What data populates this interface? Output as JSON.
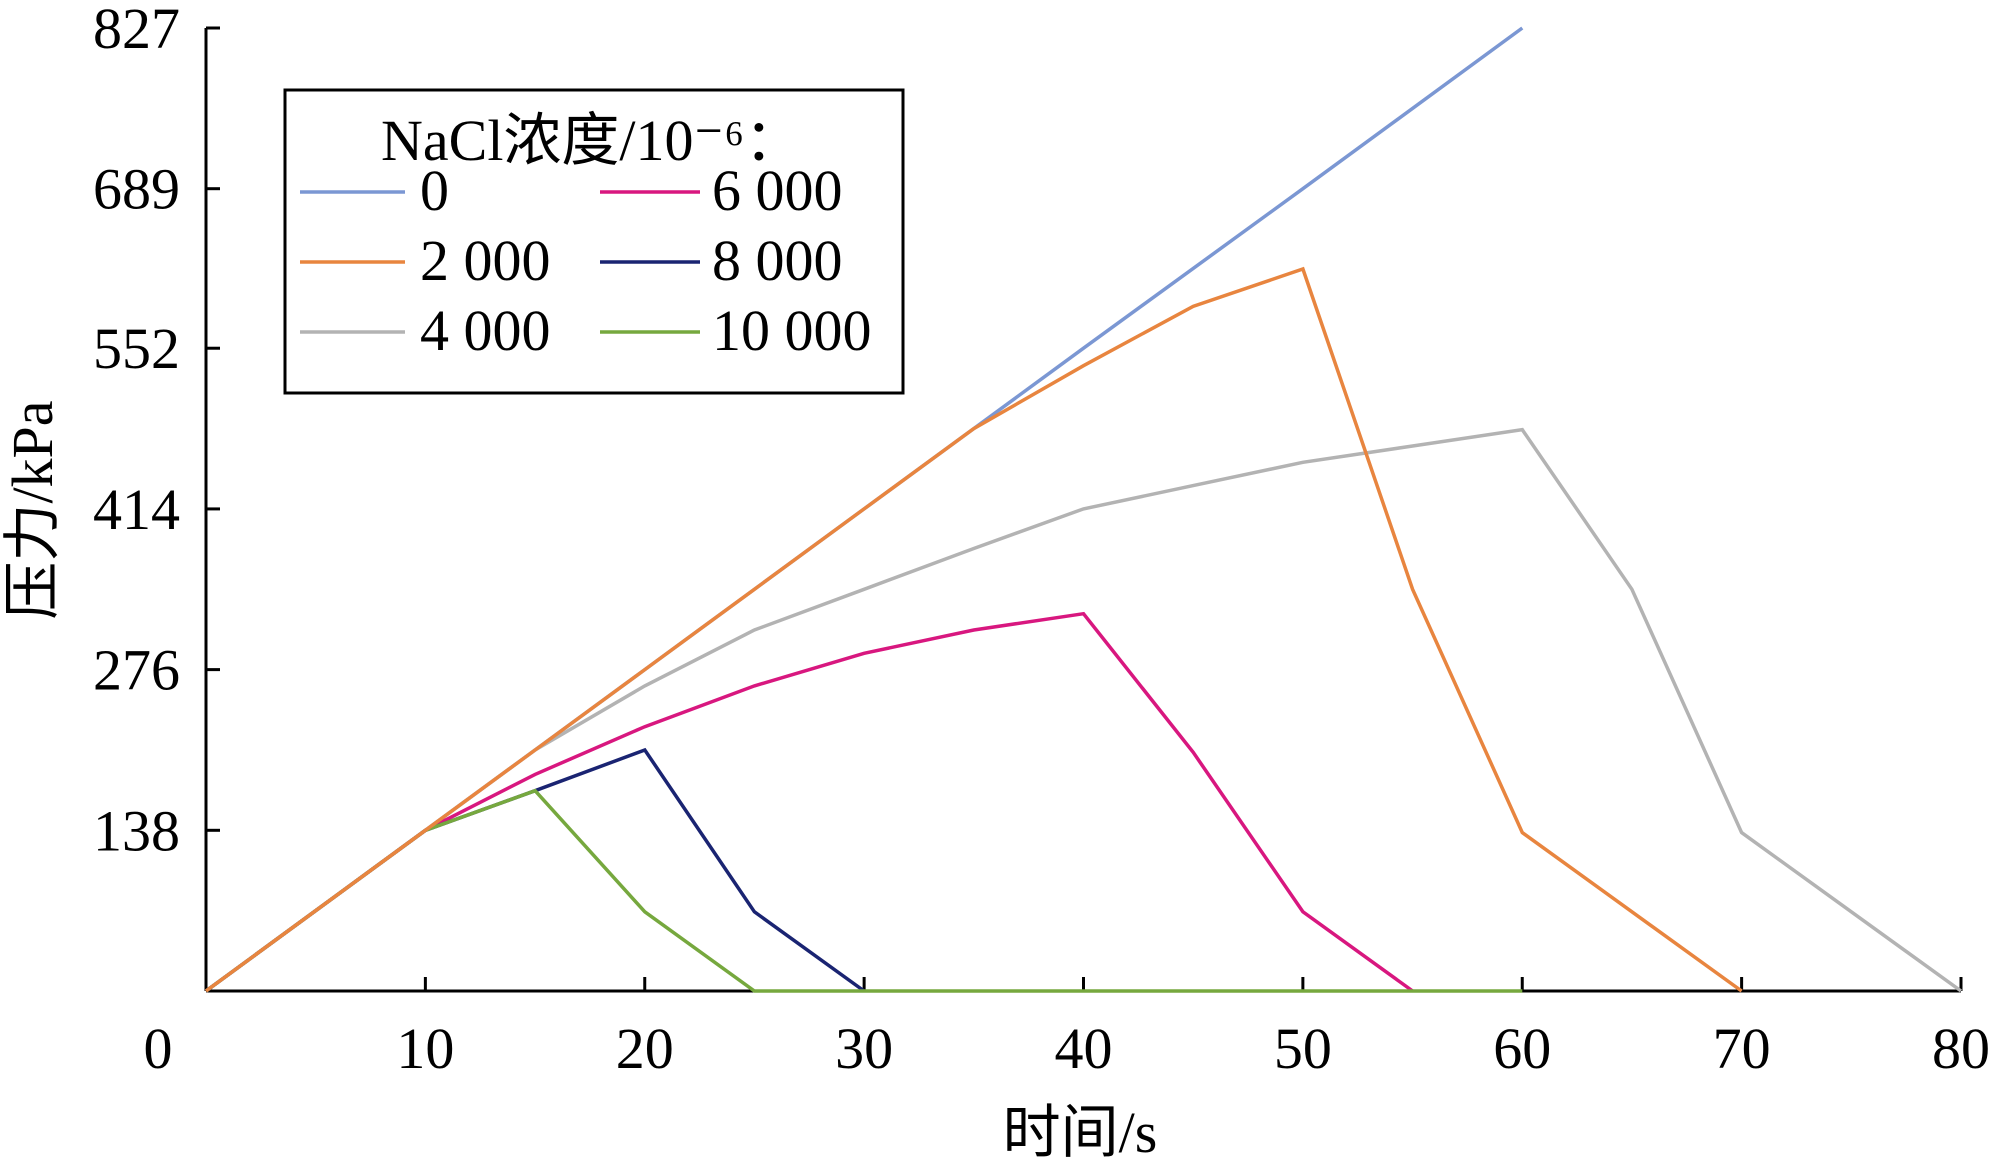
{
  "chart_data": {
    "type": "line",
    "title": "",
    "xlabel": "时间/s",
    "ylabel": "压力/kPa",
    "xlim": [
      0,
      80
    ],
    "ylim": [
      0,
      827
    ],
    "x_ticks": [
      0,
      10,
      20,
      30,
      40,
      50,
      60,
      70,
      80
    ],
    "y_ticks": [
      0,
      138,
      276,
      414,
      552,
      689,
      827
    ],
    "y_tick_labels": [
      "138",
      "276",
      "414",
      "552",
      "689",
      "827"
    ],
    "x_tick_labels": [
      "0",
      "10",
      "20",
      "30",
      "40",
      "50",
      "60",
      "70",
      "80"
    ],
    "grid": false,
    "legend": {
      "title": "NaCl浓度/10⁻⁶：",
      "position": "top-left"
    },
    "series": [
      {
        "name": "0",
        "color": "#7b97d3",
        "x": [
          0,
          10,
          20,
          30,
          40,
          50,
          60
        ],
        "y": [
          0,
          138,
          276,
          414,
          552,
          689,
          827
        ]
      },
      {
        "name": "2 000",
        "color": "#e8853f",
        "x": [
          0,
          10,
          15,
          20,
          25,
          30,
          35,
          40,
          45,
          50,
          55,
          60,
          70
        ],
        "y": [
          0,
          138,
          207,
          276,
          345,
          414,
          483,
          537,
          588,
          620,
          345,
          136,
          0
        ]
      },
      {
        "name": "4 000",
        "color": "#b3b3b3",
        "x": [
          0,
          10,
          15,
          20,
          25,
          30,
          35,
          40,
          45,
          50,
          55,
          60,
          65,
          70,
          80
        ],
        "y": [
          0,
          138,
          207,
          262,
          310,
          345,
          380,
          414,
          434,
          454,
          468,
          482,
          345,
          136,
          0
        ]
      },
      {
        "name": "6 000",
        "color": "#d8177f",
        "x": [
          0,
          10,
          15,
          20,
          25,
          30,
          35,
          40,
          45,
          50,
          55
        ],
        "y": [
          0,
          138,
          186,
          227,
          262,
          290,
          310,
          324,
          205,
          68,
          0
        ]
      },
      {
        "name": "8 000",
        "color": "#1a2472",
        "x": [
          0,
          10,
          15,
          20,
          25,
          30
        ],
        "y": [
          0,
          138,
          172,
          207,
          68,
          0
        ]
      },
      {
        "name": "10 000",
        "color": "#76a83e",
        "x": [
          0,
          10,
          15,
          20,
          25,
          30,
          40,
          50,
          60
        ],
        "y": [
          0,
          138,
          172,
          68,
          0,
          0,
          0,
          0,
          0
        ]
      }
    ]
  }
}
